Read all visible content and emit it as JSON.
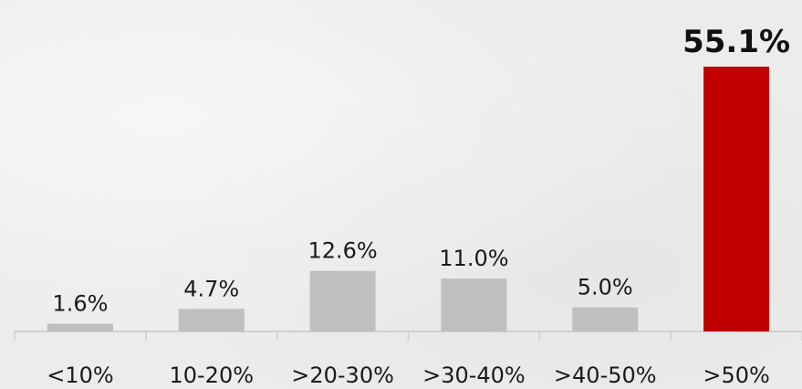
{
  "chart_data": {
    "type": "bar",
    "categories": [
      "<10%",
      "10-20%",
      ">20-30%",
      ">30-40%",
      ">40-50%",
      ">50%"
    ],
    "values": [
      1.6,
      4.7,
      12.6,
      11.0,
      5.0,
      55.1
    ],
    "value_labels": [
      "1.6%",
      "4.7%",
      "12.6%",
      "11.0%",
      "5.0%",
      "55.1%"
    ],
    "highlight_index": 5,
    "colors": {
      "bar": "#bfbfbf",
      "highlight": "#c00000",
      "axis": "#d0d0d0"
    },
    "ylim": [
      0,
      55.1
    ],
    "grid": false,
    "title": "",
    "xlabel": "",
    "ylabel": ""
  }
}
